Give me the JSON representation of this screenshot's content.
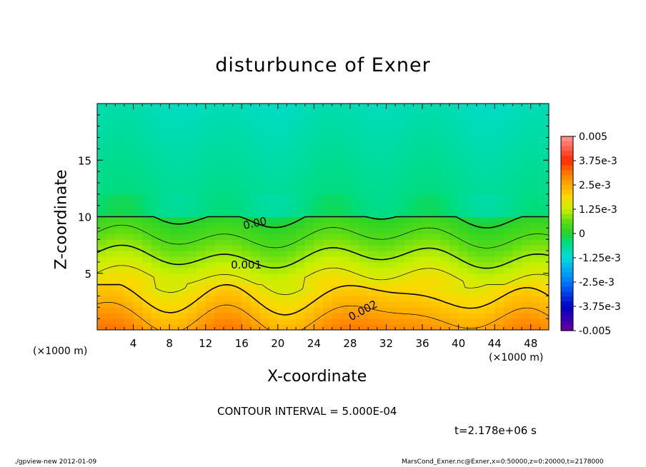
{
  "chart_data": {
    "type": "heatmap",
    "title": "disturbunce of Exner",
    "xlabel": "X-coordinate",
    "ylabel": "Z-coordinate",
    "x_unit_label": "(×1000 m)",
    "xlim": [
      0,
      50
    ],
    "ylim": [
      0,
      20
    ],
    "x_ticks": [
      4,
      8,
      12,
      16,
      20,
      24,
      28,
      32,
      36,
      40,
      44,
      48
    ],
    "y_ticks": [
      5,
      10,
      15
    ],
    "colorbar": {
      "labels": [
        "0.005",
        "3.75e-3",
        "2.5e-3",
        "1.25e-3",
        "0",
        "-1.25e-3",
        "-2.5e-3",
        "-3.75e-3",
        "-0.005"
      ],
      "range": [
        -0.005,
        0.005
      ]
    },
    "contour_labels": [
      {
        "text": "0.00",
        "x": 17.5,
        "z": 9.3
      },
      {
        "text": "0.001",
        "x": 16.5,
        "z": 5.6
      },
      {
        "text": "0.002",
        "x": 29.5,
        "z": 1.6
      }
    ],
    "contour_interval_text": "CONTOUR INTERVAL = 5.000E-04",
    "time_text": "t=2.178e+06 s"
  },
  "footer": {
    "left": "./gpview-new   2012-01-09",
    "right": "MarsCond_Exner.nc@Exner,x=0:50000,z=0:20000,t=2178000"
  }
}
